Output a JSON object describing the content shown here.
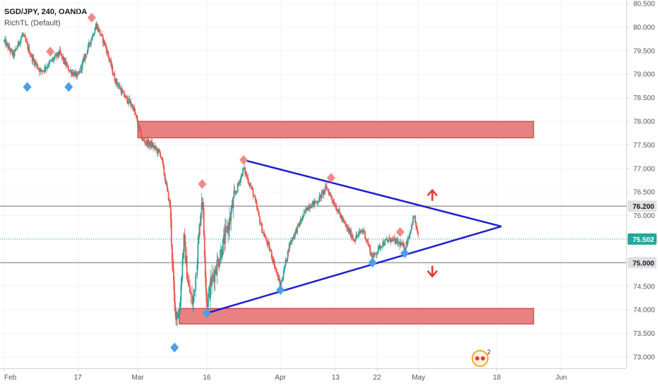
{
  "header": {
    "symbol_line": "SGD/JPY, 240, OANDA",
    "indicator_line": "RichTL (Default)"
  },
  "colors": {
    "up_candle": "#26a69a",
    "down_candle": "#ef5350",
    "zone_fill": "#e57373",
    "zone_stroke": "#c62828",
    "trendline": "#1e1ed2",
    "marker_high": "#ef8a8a",
    "marker_low": "#4a9fe8",
    "arrow": "#e53935",
    "hline": "#9e9e9e",
    "price_line": "#26a69a"
  },
  "chart_data": {
    "type": "candlestick",
    "title": "SGD/JPY, 240, OANDA",
    "x_ticks": [
      "Feb",
      "17",
      "Mar",
      "16",
      "Apr",
      "13",
      "22",
      "May",
      "18",
      "Jun"
    ],
    "y_ticks": [
      "80.500",
      "80.000",
      "79.500",
      "79.000",
      "78.500",
      "78.000",
      "77.500",
      "77.000",
      "76.500",
      "76.000",
      "75.500",
      "75.000",
      "74.500",
      "74.000",
      "73.500",
      "73.000"
    ],
    "ylim": [
      72.9,
      80.55
    ],
    "price_labels": [
      {
        "text": "76.200",
        "value": 76.2,
        "style": "grey"
      },
      {
        "text": "75.502",
        "value": 75.502,
        "style": "current"
      },
      {
        "text": "75.000",
        "value": 75.0,
        "style": "grey"
      }
    ],
    "horizontal_lines": [
      76.2,
      75.0
    ],
    "current_price": 75.502,
    "zones": [
      {
        "name": "resistance-zone",
        "x_start": "Mar 1",
        "x_end": "May 26",
        "y_low": 77.65,
        "y_high": 78.0
      },
      {
        "name": "support-zone",
        "x_start": "Mar 10",
        "x_end": "May 26",
        "y_low": 73.7,
        "y_high": 74.03
      }
    ],
    "trendlines": [
      {
        "name": "upper-trendline",
        "from": {
          "x": "Mar 24",
          "y": 77.18
        },
        "to": {
          "x": "May 19",
          "y": 75.77
        }
      },
      {
        "name": "lower-trendline",
        "from": {
          "x": "Mar 16",
          "y": 73.93
        },
        "to": {
          "x": "May 19",
          "y": 75.77
        }
      }
    ],
    "close_path": [
      {
        "x": "Feb 1",
        "y": 79.7
      },
      {
        "x": "Feb 3",
        "y": 79.4
      },
      {
        "x": "Feb 5",
        "y": 79.85
      },
      {
        "x": "Feb 7",
        "y": 79.35
      },
      {
        "x": "Feb 9",
        "y": 79.05
      },
      {
        "x": "Feb 11",
        "y": 79.25
      },
      {
        "x": "Feb 13",
        "y": 79.45
      },
      {
        "x": "Feb 15",
        "y": 79.1
      },
      {
        "x": "Feb 17",
        "y": 78.95
      },
      {
        "x": "Feb 19",
        "y": 79.5
      },
      {
        "x": "Feb 21",
        "y": 80.05
      },
      {
        "x": "Feb 23",
        "y": 79.6
      },
      {
        "x": "Feb 25",
        "y": 78.9
      },
      {
        "x": "Feb 27",
        "y": 78.55
      },
      {
        "x": "Feb 29",
        "y": 78.3
      },
      {
        "x": "Mar 2",
        "y": 77.6
      },
      {
        "x": "Mar 4",
        "y": 77.5
      },
      {
        "x": "Mar 6",
        "y": 77.3
      },
      {
        "x": "Mar 8",
        "y": 76.2
      },
      {
        "x": "Mar 9",
        "y": 74.0
      },
      {
        "x": "Mar 10",
        "y": 73.9
      },
      {
        "x": "Mar 11",
        "y": 75.5
      },
      {
        "x": "Mar 12",
        "y": 74.5
      },
      {
        "x": "Mar 13",
        "y": 74.1
      },
      {
        "x": "Mar 14",
        "y": 75.2
      },
      {
        "x": "Mar 15",
        "y": 76.5
      },
      {
        "x": "Mar 16",
        "y": 74.1
      },
      {
        "x": "Mar 17",
        "y": 74.6
      },
      {
        "x": "Mar 19",
        "y": 75.2
      },
      {
        "x": "Mar 21",
        "y": 75.9
      },
      {
        "x": "Mar 22",
        "y": 76.4
      },
      {
        "x": "Mar 24",
        "y": 77.0
      },
      {
        "x": "Mar 26",
        "y": 76.5
      },
      {
        "x": "Mar 28",
        "y": 75.7
      },
      {
        "x": "Mar 30",
        "y": 75.2
      },
      {
        "x": "Apr 1",
        "y": 74.5
      },
      {
        "x": "Apr 3",
        "y": 75.4
      },
      {
        "x": "Apr 5",
        "y": 75.8
      },
      {
        "x": "Apr 7",
        "y": 76.2
      },
      {
        "x": "Apr 9",
        "y": 76.3
      },
      {
        "x": "Apr 11",
        "y": 76.6
      },
      {
        "x": "Apr 13",
        "y": 76.2
      },
      {
        "x": "Apr 15",
        "y": 75.8
      },
      {
        "x": "Apr 17",
        "y": 75.5
      },
      {
        "x": "Apr 19",
        "y": 75.7
      },
      {
        "x": "Apr 21",
        "y": 75.1
      },
      {
        "x": "Apr 23",
        "y": 75.4
      },
      {
        "x": "Apr 25",
        "y": 75.5
      },
      {
        "x": "Apr 27",
        "y": 75.4
      },
      {
        "x": "Apr 28",
        "y": 75.3
      },
      {
        "x": "Apr 29",
        "y": 75.6
      },
      {
        "x": "Apr 30",
        "y": 76.0
      },
      {
        "x": "May 1",
        "y": 75.502
      }
    ],
    "markers": [
      {
        "kind": "high",
        "x": "Feb 11",
        "y": 79.48
      },
      {
        "kind": "high",
        "x": "Feb 20",
        "y": 80.2
      },
      {
        "kind": "high",
        "x": "Mar 15",
        "y": 76.67
      },
      {
        "kind": "high",
        "x": "Mar 24",
        "y": 77.18
      },
      {
        "kind": "high",
        "x": "Apr 12",
        "y": 76.8
      },
      {
        "kind": "high",
        "x": "Apr 27",
        "y": 75.65
      },
      {
        "kind": "low",
        "x": "Feb 6",
        "y": 78.73
      },
      {
        "kind": "low",
        "x": "Feb 15",
        "y": 78.73
      },
      {
        "kind": "low",
        "x": "Mar 9",
        "y": 73.2
      },
      {
        "kind": "low",
        "x": "Mar 16",
        "y": 73.93
      },
      {
        "kind": "low",
        "x": "Apr 1",
        "y": 74.42
      },
      {
        "kind": "low",
        "x": "Apr 21",
        "y": 75.0
      },
      {
        "kind": "low",
        "x": "Apr 28",
        "y": 75.2
      }
    ],
    "arrows": [
      {
        "direction": "up",
        "x": "May 4",
        "y": 76.45
      },
      {
        "direction": "down",
        "x": "May 4",
        "y": 74.8
      }
    ],
    "grid": true,
    "badge_count": "2"
  }
}
